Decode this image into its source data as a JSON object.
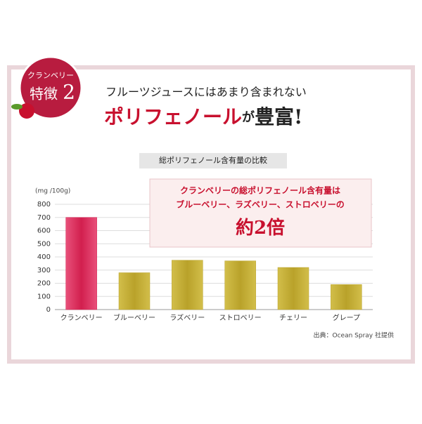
{
  "badge": {
    "line1": "クランベリー",
    "line2": "特徴",
    "number": "2"
  },
  "headline": {
    "lead": "フルーツジュースにはあまり含まれない",
    "parts": [
      "ポリフェノール",
      "が",
      "豊富!"
    ]
  },
  "callout": {
    "line1": "クランベリーの総ポリフェノール含有量は",
    "line2": "ブルーベリー、ラズベリー、ストロベリーの",
    "emphasis": "約2倍"
  },
  "source": "出典：Ocean Spray 社提供",
  "chart_data": {
    "type": "bar",
    "title": "総ポリフェノール含有量の比較",
    "y_label": "(mg /100g)",
    "categories": [
      "クランベリー",
      "ブルーベリー",
      "ラズベリー",
      "ストロベリー",
      "チェリー",
      "グレープ"
    ],
    "values": [
      700,
      280,
      375,
      370,
      320,
      190
    ],
    "colors": [
      "#d21f4e",
      "#b9a22a",
      "#b9a22a",
      "#b9a22a",
      "#b9a22a",
      "#b9a22a"
    ],
    "ylim": [
      0,
      800
    ],
    "yticks": [
      0,
      100,
      200,
      300,
      400,
      500,
      600,
      700,
      800
    ],
    "grid": true
  }
}
